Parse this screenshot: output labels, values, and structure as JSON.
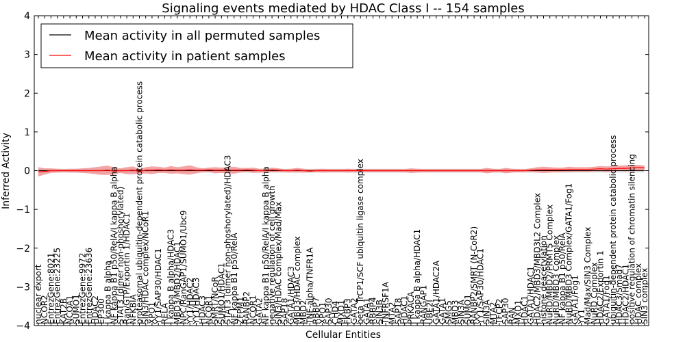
{
  "chart_data": {
    "type": "line",
    "title": "Signaling events mediated by HDAC Class I -- 154 samples",
    "xlabel": "Cellular Entities",
    "ylabel": "Inferred Activity",
    "ylim": [
      -4,
      4
    ],
    "yticks": [
      -4,
      -3,
      -2,
      -1,
      0,
      1,
      2,
      3,
      4
    ],
    "ytick_labels": [
      "−4",
      "−3",
      "−2",
      "−1",
      "0",
      "1",
      "2",
      "3",
      "4"
    ],
    "grid": false,
    "legend_position": "top-left",
    "categories": [
      "nuclear export",
      "NCOR2",
      "EntrezGene:8021",
      "EntrezGene:23225",
      "KAT2B",
      "NCOA1",
      "SUMO1",
      "EntrezGene:9972",
      "EntrezGene:23636",
      "HDAC2",
      "EP300",
      "I kappa B alpha",
      "NF kappa B1 p50/RelA/I kappa B alpha",
      "STAT3 (dimer non-phoshorylated)",
      "Ran/GTP/Exportin 1/HDAC1",
      "NFKBIA",
      "proteasomal ubiquitin-dependent protein catabolic process",
      "SIN3/HDAC complex/NCoR1",
      "XPO1",
      "YY1/SAP30/HDAC1",
      "RELA",
      "I kappa B alpha/HDAC3",
      "MBD3/MBD2/HDAC1",
      "NPC/RanGAP1/SUMO1/Ubc9",
      "YY1/HDAC2",
      "YY1/HDAC3",
      "HDAC3",
      "NCOR1",
      "SMRT/NCoR",
      "SUMO1/HDAC1",
      "STAT3 (dimer non-phoshorylated)/HDAC3",
      "NF kappa B1 p50/RelA",
      "ZFPM1",
      "RANBP2",
      "NCOR1",
      "GATA2",
      "NF kappa B1 p50/RelA/I kappa B alpha",
      "negative regulation of cell growth",
      "SIN3/HDAC complex/Mad/Max",
      "SAP18",
      "GATA1/HDAC3",
      "MBD3/HDAC complex",
      "MBD2",
      "TNF-alpha/TNFR1A",
      "RBBP7",
      "XPO1",
      "SAP30",
      "CHD4",
      "MXD1",
      "FKBP3",
      "GATA2",
      "beta TrCP1/SCF ubiquitin ligase complex",
      "GATA1",
      "RBBP4",
      "SIN3B",
      "TNFRSF1A",
      "MTA2",
      "SAP18",
      "HDAC1",
      "PRKACA",
      "I kappa B alpha/HDAC1",
      "RANGAP1",
      "UBE2I",
      "GATA1/HDAC2A",
      "GATA1",
      "SMG5",
      "MBD3",
      "SIN3A",
      "SUMO1",
      "RANBP2/SMRT (N-CoR2)",
      "YY1/SAP30/HDAC1",
      "SIN3A",
      "MTA2",
      "TFCP2",
      "SAP30",
      "RAN",
      "MXD1",
      "HDAC1",
      "GATA1/HDAC1",
      "HDAC2/MBD3/MBD3L2 Complex",
      "histone deacetylation",
      "NuRD/MBD2/PRMT5 Complex",
      "NuRD/MBD3 Complex",
      "NF kappa B1 p50/RelA",
      "NuRD/MBD3 Complex/GATA1/Fog1",
      "GATA1/Fog1",
      "YY1",
      "Mad/Max/SIN3 Complex",
      "NuRD Complex",
      "HDAC2/Exportin 1",
      "GATA1/Fog1",
      "ubiquitin-dependent protein catabolic process",
      "HDAC3/Smad7",
      "HDAC2/HDAC1",
      "positive regulation of chromatin silencing",
      "HDAC complex",
      "SIN3 complex"
    ],
    "series": [
      {
        "name": "Mean activity in all permuted samples",
        "color": "#000000",
        "values": [
          0,
          0,
          0,
          0,
          0,
          0,
          0,
          0,
          0,
          0,
          0,
          0,
          0,
          0,
          0,
          0,
          0,
          0,
          0,
          0,
          0,
          0,
          0,
          0,
          0,
          0,
          0,
          0,
          0,
          0,
          0,
          0,
          0,
          0,
          0,
          0,
          0,
          0,
          0,
          0,
          0,
          0,
          0,
          0,
          0,
          0,
          0,
          0,
          0,
          0,
          0,
          0,
          0,
          0,
          0,
          0,
          0,
          0,
          0,
          0,
          0,
          0,
          0,
          0,
          0,
          0,
          0,
          0,
          0,
          0,
          0,
          0,
          0,
          0,
          0,
          0,
          0,
          0,
          0,
          0,
          0,
          0,
          0,
          0,
          0,
          0,
          0,
          0,
          0,
          0,
          0,
          0,
          0,
          0,
          0,
          0,
          0
        ]
      },
      {
        "name": "Mean activity in patient samples",
        "color": "#ff0000",
        "values": [
          -0.03,
          -0.02,
          0,
          0,
          0,
          0,
          0,
          0,
          0,
          0,
          0,
          0.01,
          -0.01,
          0,
          0,
          0.01,
          -0.02,
          0.01,
          0.01,
          0.02,
          0.01,
          0.02,
          0.01,
          0.01,
          0.02,
          0.01,
          0.01,
          0.02,
          0.01,
          0.01,
          0.01,
          0.01,
          0.01,
          0.02,
          0.01,
          0,
          0,
          0.02,
          0.01,
          0,
          0,
          0.01,
          0,
          -0.01,
          0,
          0,
          0,
          0,
          0,
          0,
          0,
          0,
          0,
          0,
          0,
          0,
          0,
          0,
          0,
          0,
          0,
          0,
          0,
          0,
          0,
          0,
          0,
          0,
          0,
          0,
          0,
          0,
          0,
          0,
          0,
          0,
          0,
          0,
          0.01,
          0.02,
          0.02,
          0.02,
          0.02,
          0.02,
          0.03,
          0.03,
          0.03,
          0.03,
          0.04,
          0.05,
          0.04,
          0.05,
          0.06,
          0.06,
          0.07,
          0.08,
          0.07
        ]
      }
    ],
    "patient_band_halfwidth": [
      0.12,
      0.08,
      0.06,
      0.05,
      0.04,
      0.05,
      0.05,
      0.06,
      0.07,
      0.09,
      0.11,
      0.12,
      0.09,
      0.06,
      0.09,
      0.1,
      0.06,
      0.08,
      0.1,
      0.08,
      0.07,
      0.1,
      0.08,
      0.1,
      0.12,
      0.08,
      0.05,
      0.06,
      0.08,
      0.07,
      0.08,
      0.09,
      0.06,
      0.05,
      0.07,
      0.05,
      0.05,
      0.06,
      0.05,
      0.04,
      0.05,
      0.06,
      0.05,
      0.04,
      0.04,
      0.05,
      0.04,
      0.04,
      0.04,
      0.05,
      0.04,
      0.04,
      0.04,
      0.04,
      0.04,
      0.04,
      0.04,
      0.04,
      0.04,
      0.06,
      0.05,
      0.04,
      0.04,
      0.04,
      0.04,
      0.04,
      0.04,
      0.04,
      0.04,
      0.04,
      0.04,
      0.07,
      0.05,
      0.04,
      0.07,
      0.05,
      0.04,
      0.04,
      0.05,
      0.07,
      0.08,
      0.07,
      0.06,
      0.06,
      0.07,
      0.06,
      0.06,
      0.06,
      0.06,
      0.07,
      0.07,
      0.07,
      0.07,
      0.08,
      0.08,
      0.07,
      0.06
    ],
    "permuted_band_halfwidth": 0.05,
    "colors": {
      "patient_line": "#ff0000",
      "patient_band": "#f08080",
      "permuted_line": "#000000",
      "permuted_band": "#c8c8c8",
      "frame": "#000000"
    }
  }
}
